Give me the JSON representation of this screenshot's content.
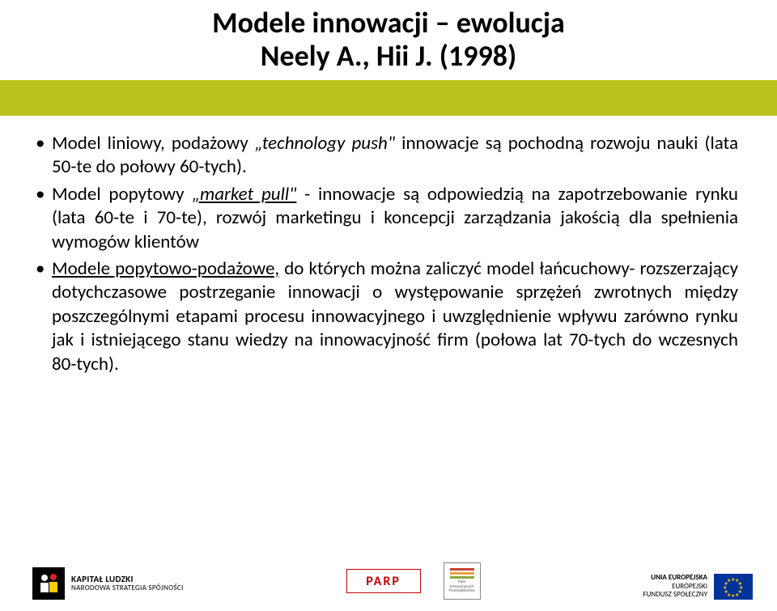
{
  "title_line1": "Modele innowacji – ewolucja",
  "title_line2": "Neely A., Hii J. (1998)",
  "title_fontsize": 36,
  "band_color": "#b9c31e",
  "body_fontsize": 23,
  "bullets": [
    {
      "pre": "Model liniowy, podażowy ",
      "emph": "„technology push\"",
      "post": " innowacje są pochodną rozwoju nauki (lata 50-te do połowy 60-tych)."
    },
    {
      "pre": "Model popytowy ",
      "emph": "„market pull\"",
      "post": " - innowacje są odpowiedzią na zapotrzebowanie rynku (lata 60-te i 70-te), rozwój marketingu i koncepcji zarządzania jakością dla spełnienia wymogów klientów"
    },
    {
      "u": "Modele popytowo-podażowe,",
      "post": " do których można zaliczyć model łańcuchowy- rozszerzający dotychczasowe postrzeganie innowacji o występowanie sprzężeń zwrotnych między poszczególnymi etapami procesu innowacyjnego i uwzględnienie wpływu zarówno rynku jak i istniejącego stanu wiedzy na innowacyjność firm (połowa lat 70-tych do wczesnych 80-tych)."
    }
  ],
  "footer": {
    "kl_line1": "KAPITAŁ LUDZKI",
    "kl_line2": "NARODOWA STRATEGIA SPÓJNOŚCI",
    "parp": "PARP",
    "kip_line1": "Klub",
    "kip_line2": "Innowacyjnych",
    "kip_line3": "Przedsiębiorstw",
    "eu_line1": "UNIA EUROPEJSKA",
    "eu_line2": "EUROPEJSKI",
    "eu_line3": "FUNDUSZ SPOŁECZNY"
  },
  "colors": {
    "kip_red": "#c9413a",
    "kip_orange": "#e8a33d",
    "kip_green": "#8aa844",
    "parp_red": "#c00000",
    "eu_blue": "#003399",
    "eu_gold": "#ffcc00"
  }
}
